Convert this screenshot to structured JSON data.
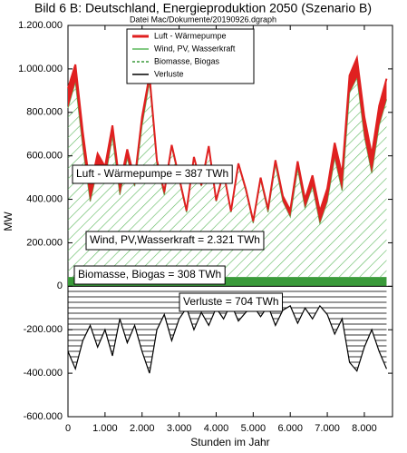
{
  "chart_data": {
    "type": "stacked_area",
    "title": "Bild 6 B: Deutschland, Energieproduktion 2050 (Szenario B)",
    "subtitle": "Datei Mac/Dokumente/20190926.dgraph",
    "x_label": "Stunden im Jahr",
    "y_label": "MW",
    "x": [
      0,
      200,
      400,
      600,
      800,
      1000,
      1200,
      1400,
      1600,
      1800,
      2000,
      2200,
      2400,
      2600,
      2800,
      3000,
      3200,
      3400,
      3600,
      3800,
      4000,
      4200,
      4400,
      4600,
      4800,
      5000,
      5200,
      5400,
      5600,
      5800,
      6000,
      6200,
      6400,
      6600,
      6800,
      7000,
      7200,
      7400,
      7600,
      7800,
      8000,
      8200,
      8400,
      8600
    ],
    "series": [
      {
        "name": "Biomasse, Biogas",
        "color": "#3a9a3a",
        "values": [
          40000,
          40000,
          40000,
          40000,
          40000,
          40000,
          40000,
          40000,
          40000,
          40000,
          40000,
          40000,
          40000,
          40000,
          40000,
          40000,
          40000,
          40000,
          40000,
          40000,
          40000,
          40000,
          40000,
          40000,
          40000,
          40000,
          40000,
          40000,
          40000,
          40000,
          40000,
          40000,
          40000,
          40000,
          40000,
          40000,
          40000,
          40000,
          40000,
          40000,
          40000,
          40000,
          40000,
          40000
        ]
      },
      {
        "name": "Wind, PV, Wasserkraft",
        "color": "#5cb85c",
        "values": [
          780000,
          900000,
          600000,
          350000,
          500000,
          450000,
          650000,
          380000,
          550000,
          420000,
          700000,
          900000,
          520000,
          380000,
          600000,
          450000,
          300000,
          550000,
          420000,
          600000,
          350000,
          480000,
          300000,
          520000,
          400000,
          250000,
          450000,
          300000,
          520000,
          350000,
          280000,
          500000,
          320000,
          420000,
          250000,
          350000,
          550000,
          400000,
          850000,
          920000,
          650000,
          480000,
          700000,
          820000
        ]
      },
      {
        "name": "Luft - Wärmepumpe",
        "color": "#e02020",
        "values": [
          90000,
          80000,
          70000,
          60000,
          70000,
          60000,
          50000,
          45000,
          40000,
          30000,
          40000,
          30000,
          20000,
          15000,
          10000,
          10000,
          8000,
          5000,
          5000,
          5000,
          5000,
          5000,
          5000,
          5000,
          8000,
          10000,
          10000,
          15000,
          20000,
          25000,
          30000,
          35000,
          40000,
          50000,
          55000,
          60000,
          70000,
          75000,
          80000,
          90000,
          90000,
          85000,
          90000,
          95000
        ]
      },
      {
        "name": "Verluste",
        "color": "#000000",
        "values": [
          -300000,
          -380000,
          -250000,
          -180000,
          -280000,
          -200000,
          -320000,
          -150000,
          -260000,
          -180000,
          -300000,
          -400000,
          -200000,
          -130000,
          -250000,
          -150000,
          -100000,
          -200000,
          -120000,
          -180000,
          -100000,
          -150000,
          -80000,
          -160000,
          -120000,
          -90000,
          -140000,
          -90000,
          -180000,
          -110000,
          -90000,
          -170000,
          -100000,
          -150000,
          -90000,
          -130000,
          -220000,
          -150000,
          -350000,
          -390000,
          -280000,
          -200000,
          -300000,
          -380000
        ]
      }
    ],
    "annotations": [
      "Luft - Wärmepumpe = 387 TWh",
      "Wind, PV,Wasserkraft = 2.321 TWh",
      "Biomasse, Biogas = 308 TWh",
      "Verluste = 704 TWh"
    ],
    "xlim": [
      0,
      8760
    ],
    "xticks": [
      0,
      {
        "value": 1000,
        "label": "1.000"
      },
      {
        "value": 2000,
        "label": "2.000"
      },
      {
        "value": 3000,
        "label": "3.000"
      },
      {
        "value": 4000,
        "label": "4.000"
      },
      {
        "value": 5000,
        "label": "5.000"
      },
      {
        "value": 6000,
        "label": "6.000"
      },
      {
        "value": 7000,
        "label": "7.000"
      },
      {
        "value": 8000,
        "label": "8.000"
      }
    ],
    "ylim": [
      -600000,
      1200000
    ],
    "yticks": [
      {
        "value": -600000,
        "label": "-600.000"
      },
      {
        "value": -400000,
        "label": "-400.000"
      },
      {
        "value": -200000,
        "label": "-200.000"
      },
      0,
      {
        "value": 200000,
        "label": "200.000"
      },
      {
        "value": 400000,
        "label": "400.000"
      },
      {
        "value": 600000,
        "label": "600.000"
      },
      {
        "value": 800000,
        "label": "800.000"
      },
      {
        "value": 1000000,
        "label": "1.000.000"
      },
      {
        "value": 1200000,
        "label": "1.200.000"
      }
    ],
    "grid": false
  }
}
